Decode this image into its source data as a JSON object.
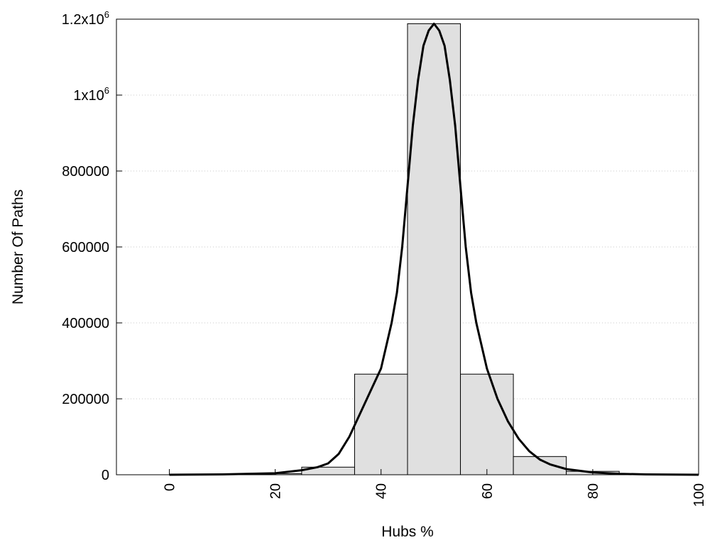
{
  "chart_data": {
    "type": "bar",
    "xlabel": "Hubs %",
    "ylabel": "Number Of Paths",
    "xlim": [
      -10,
      100
    ],
    "ylim": [
      0,
      1200000
    ],
    "grid": true,
    "legend": "none",
    "bar_color": "#e0e0e0",
    "line_color": "#000000",
    "x_ticks": [
      {
        "value": 0,
        "label": "0"
      },
      {
        "value": 20,
        "label": "20"
      },
      {
        "value": 40,
        "label": "40"
      },
      {
        "value": 60,
        "label": "60"
      },
      {
        "value": 80,
        "label": "80"
      },
      {
        "value": 100,
        "label": "100"
      }
    ],
    "y_ticks": [
      {
        "value": 0,
        "label": "0"
      },
      {
        "value": 200000,
        "label": "200000"
      },
      {
        "value": 400000,
        "label": "400000"
      },
      {
        "value": 600000,
        "label": "600000"
      },
      {
        "value": 800000,
        "label": "800000"
      },
      {
        "value": 1000000,
        "base": "1x10",
        "exp": "6"
      },
      {
        "value": 1200000,
        "base": "1.2x10",
        "exp": "6"
      }
    ],
    "bars": [
      {
        "x0": 0,
        "x1": 5,
        "value": 400
      },
      {
        "x0": 5,
        "x1": 15,
        "value": 800
      },
      {
        "x0": 15,
        "x1": 25,
        "value": 3000
      },
      {
        "x0": 25,
        "x1": 35,
        "value": 20000
      },
      {
        "x0": 35,
        "x1": 45,
        "value": 265000
      },
      {
        "x0": 45,
        "x1": 55,
        "value": 1188000
      },
      {
        "x0": 55,
        "x1": 65,
        "value": 265000
      },
      {
        "x0": 65,
        "x1": 75,
        "value": 48000
      },
      {
        "x0": 75,
        "x1": 85,
        "value": 9000
      },
      {
        "x0": 85,
        "x1": 95,
        "value": 1500
      },
      {
        "x0": 95,
        "x1": 100,
        "value": 300
      }
    ],
    "curve": {
      "x": [
        0,
        10,
        20,
        25,
        28,
        30,
        32,
        34,
        36,
        38,
        40,
        42,
        43,
        44,
        45,
        46,
        47,
        48,
        49,
        50,
        51,
        52,
        53,
        54,
        55,
        56,
        57,
        58,
        60,
        62,
        64,
        66,
        68,
        70,
        72,
        75,
        80,
        85,
        90,
        100
      ],
      "y": [
        0,
        1000,
        4000,
        12000,
        20000,
        30000,
        55000,
        100000,
        160000,
        220000,
        280000,
        400000,
        480000,
        600000,
        760000,
        920000,
        1040000,
        1130000,
        1170000,
        1188000,
        1170000,
        1130000,
        1040000,
        920000,
        760000,
        600000,
        480000,
        400000,
        280000,
        200000,
        140000,
        95000,
        62000,
        40000,
        27000,
        15000,
        6000,
        2500,
        1000,
        0
      ]
    }
  }
}
